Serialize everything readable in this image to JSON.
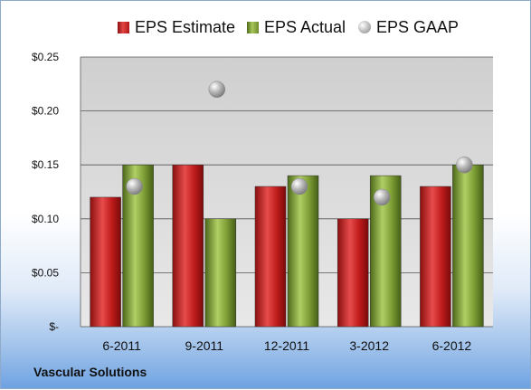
{
  "chart_data": {
    "type": "bar",
    "categories": [
      "6-2011",
      "9-2011",
      "12-2011",
      "3-2012",
      "6-2012"
    ],
    "series": [
      {
        "name": "EPS Estimate",
        "kind": "bar",
        "color": "#c81e1e",
        "values": [
          0.12,
          0.15,
          0.13,
          0.1,
          0.13
        ]
      },
      {
        "name": "EPS Actual",
        "kind": "bar",
        "color": "#8aad3e",
        "values": [
          0.15,
          0.1,
          0.14,
          0.14,
          0.15
        ]
      },
      {
        "name": "EPS GAAP",
        "kind": "marker",
        "color": "#b0b0b0",
        "values": [
          0.13,
          0.22,
          0.13,
          0.12,
          0.15
        ]
      }
    ],
    "ylim": [
      0,
      0.25
    ],
    "yticks": [
      0,
      0.05,
      0.1,
      0.15,
      0.2,
      0.25
    ],
    "ytick_labels": [
      "$-",
      "$0.05",
      "$0.10",
      "$0.15",
      "$0.20",
      "$0.25"
    ],
    "grid": true,
    "legend": "top"
  },
  "company": "Vascular Solutions"
}
